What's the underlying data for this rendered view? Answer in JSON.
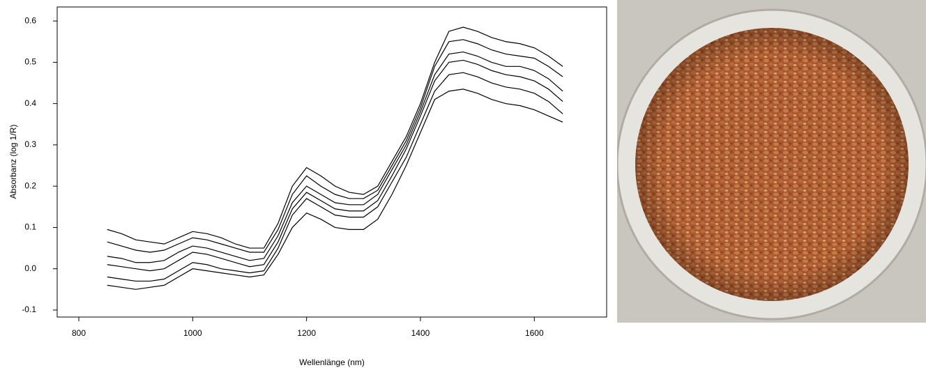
{
  "chart_data": {
    "type": "line",
    "xlabel": "Wellenlänge (nm)",
    "ylabel": "Absorbanz (log 1/R)",
    "color": "#000000",
    "x": [
      850,
      875,
      900,
      925,
      950,
      975,
      1000,
      1025,
      1050,
      1075,
      1100,
      1125,
      1150,
      1175,
      1200,
      1225,
      1250,
      1275,
      1300,
      1325,
      1350,
      1375,
      1400,
      1425,
      1450,
      1475,
      1500,
      1525,
      1550,
      1575,
      1600,
      1625,
      1650
    ],
    "series": [
      {
        "values": [
          0.095,
          0.085,
          0.07,
          0.065,
          0.06,
          0.075,
          0.09,
          0.085,
          0.075,
          0.06,
          0.05,
          0.05,
          0.11,
          0.2,
          0.245,
          0.225,
          0.2,
          0.185,
          0.18,
          0.2,
          0.26,
          0.32,
          0.4,
          0.5,
          0.575,
          0.585,
          0.575,
          0.56,
          0.55,
          0.545,
          0.535,
          0.515,
          0.49
        ]
      },
      {
        "values": [
          0.065,
          0.055,
          0.045,
          0.04,
          0.045,
          0.06,
          0.075,
          0.07,
          0.06,
          0.05,
          0.04,
          0.04,
          0.095,
          0.18,
          0.225,
          0.2,
          0.18,
          0.17,
          0.17,
          0.19,
          0.25,
          0.31,
          0.39,
          0.49,
          0.55,
          0.555,
          0.545,
          0.53,
          0.52,
          0.515,
          0.51,
          0.49,
          0.465
        ]
      },
      {
        "values": [
          0.03,
          0.025,
          0.015,
          0.015,
          0.02,
          0.04,
          0.055,
          0.05,
          0.04,
          0.03,
          0.02,
          0.025,
          0.08,
          0.16,
          0.2,
          0.18,
          0.16,
          0.155,
          0.155,
          0.18,
          0.24,
          0.3,
          0.38,
          0.47,
          0.52,
          0.525,
          0.515,
          0.5,
          0.49,
          0.49,
          0.48,
          0.46,
          0.43
        ]
      },
      {
        "values": [
          0.01,
          0.005,
          0.0,
          -0.005,
          0.0,
          0.02,
          0.04,
          0.035,
          0.025,
          0.015,
          0.005,
          0.01,
          0.065,
          0.145,
          0.185,
          0.165,
          0.145,
          0.14,
          0.14,
          0.165,
          0.225,
          0.29,
          0.37,
          0.455,
          0.5,
          0.505,
          0.495,
          0.48,
          0.47,
          0.465,
          0.455,
          0.435,
          0.405
        ]
      },
      {
        "values": [
          -0.02,
          -0.025,
          -0.03,
          -0.03,
          -0.025,
          -0.005,
          0.015,
          0.01,
          0.0,
          -0.005,
          -0.01,
          -0.005,
          0.05,
          0.13,
          0.17,
          0.15,
          0.13,
          0.125,
          0.125,
          0.15,
          0.21,
          0.27,
          0.35,
          0.43,
          0.47,
          0.475,
          0.465,
          0.45,
          0.44,
          0.435,
          0.425,
          0.405,
          0.375
        ]
      },
      {
        "values": [
          -0.04,
          -0.045,
          -0.05,
          -0.045,
          -0.04,
          -0.02,
          0.0,
          -0.005,
          -0.01,
          -0.015,
          -0.02,
          -0.015,
          0.035,
          0.1,
          0.135,
          0.12,
          0.1,
          0.095,
          0.095,
          0.12,
          0.18,
          0.25,
          0.33,
          0.41,
          0.43,
          0.435,
          0.425,
          0.41,
          0.4,
          0.395,
          0.385,
          0.37,
          0.355
        ]
      }
    ],
    "xlim": [
      762,
      1727
    ],
    "ylim": [
      -0.117,
      0.634
    ],
    "xticks": [
      800,
      1000,
      1200,
      1400,
      1600
    ],
    "yticks": [
      -0.1,
      {
        "value": 0,
        "label": "0.0"
      },
      0.1,
      0.2,
      0.3,
      0.4,
      0.5,
      0.6
    ]
  }
}
